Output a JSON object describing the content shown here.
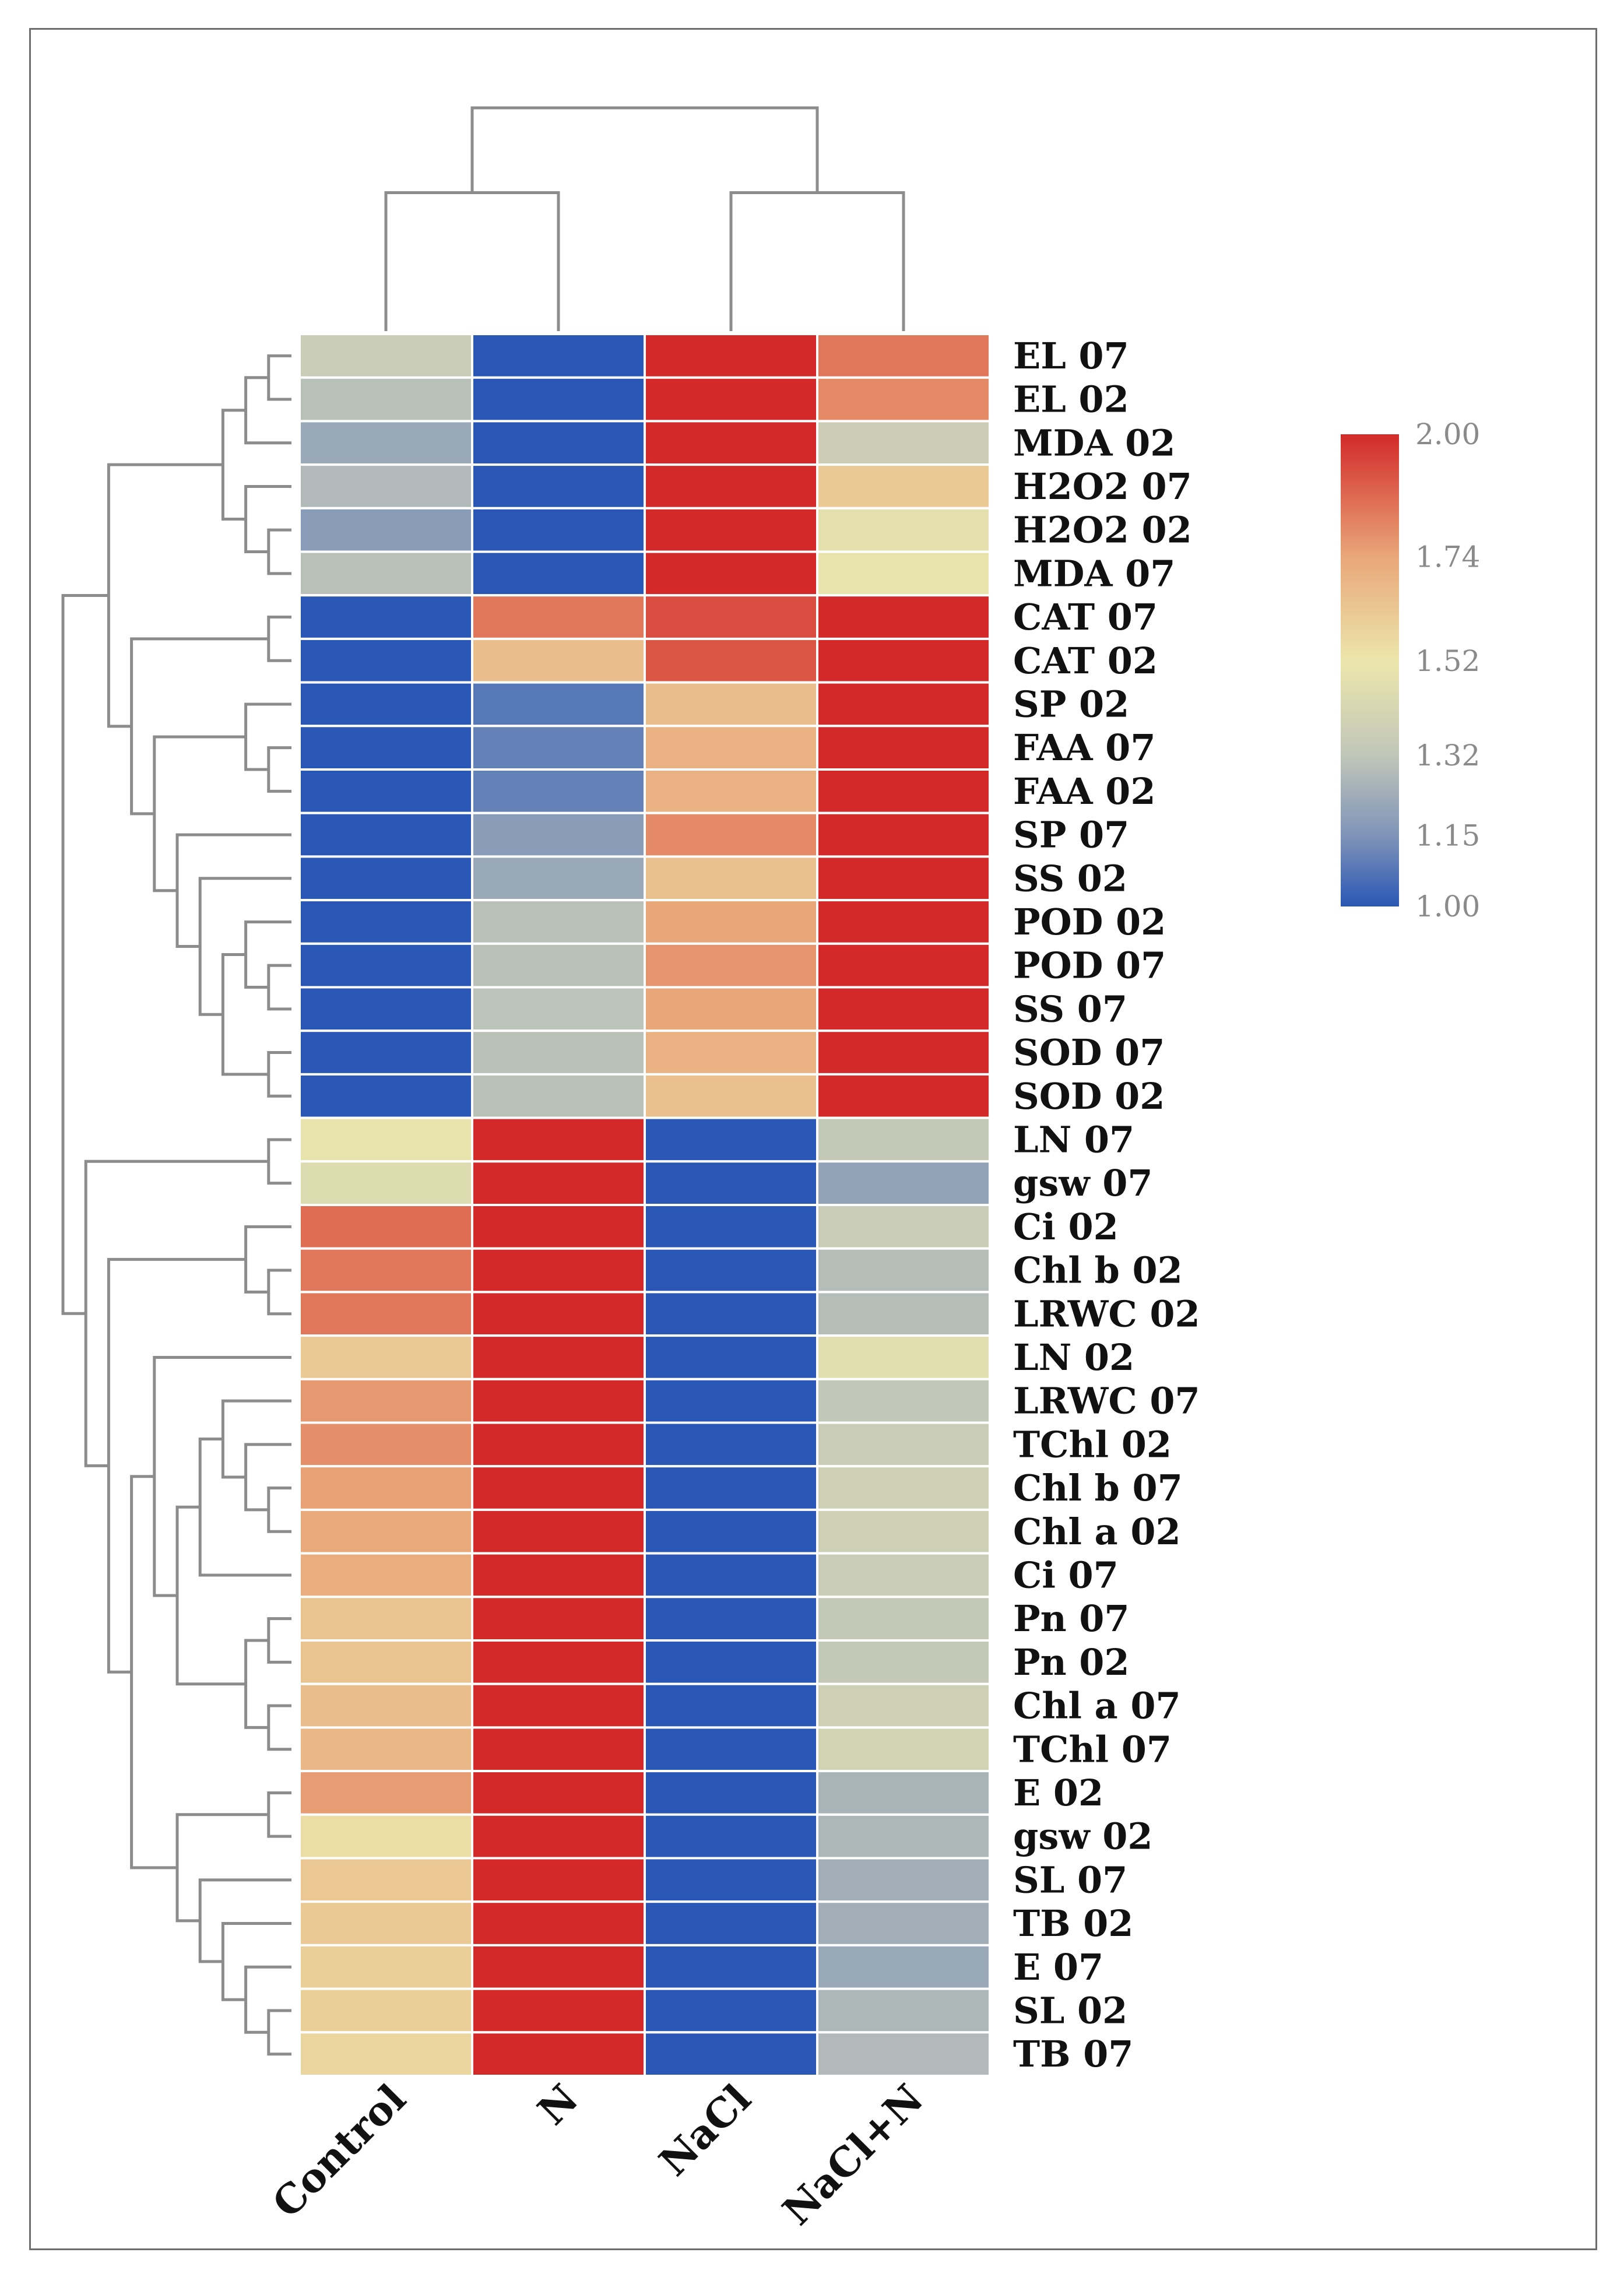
{
  "chart_data": {
    "type": "heatmap",
    "title": "",
    "columns": [
      "Control",
      "N",
      "NaCl",
      "NaCl+N"
    ],
    "rows": [
      "EL 07",
      "EL 02",
      "MDA 02",
      "H2O2 07",
      "H2O2 02",
      "MDA 07",
      "CAT 07",
      "CAT 02",
      "SP 02",
      "FAA 07",
      "FAA 02",
      "SP 07",
      "SS 02",
      "POD 02",
      "POD 07",
      "SS 07",
      "SOD 07",
      "SOD 02",
      "LN 07",
      "gsw 07",
      "Ci 02",
      "Chl b 02",
      "LRWC 02",
      "LN 02",
      "LRWC 07",
      "TChl 02",
      "Chl b 07",
      "Chl a 02",
      "Ci 07",
      "Pn 07",
      "Pn 02",
      "Chl a 07",
      "TChl 07",
      "E 02",
      "gsw 02",
      "SL 07",
      "TB 02",
      "E 07",
      "SL 02",
      "TB 07"
    ],
    "values": [
      [
        1.36,
        1.0,
        2.0,
        1.84
      ],
      [
        1.3,
        1.0,
        2.0,
        1.8
      ],
      [
        1.22,
        1.0,
        2.0,
        1.37
      ],
      [
        1.28,
        1.0,
        2.0,
        1.62
      ],
      [
        1.18,
        1.0,
        2.0,
        1.48
      ],
      [
        1.3,
        1.0,
        2.0,
        1.5
      ],
      [
        1.0,
        1.84,
        1.93,
        2.0
      ],
      [
        1.0,
        1.66,
        1.91,
        2.0
      ],
      [
        1.0,
        1.08,
        1.66,
        2.0
      ],
      [
        1.0,
        1.1,
        1.7,
        2.0
      ],
      [
        1.0,
        1.1,
        1.7,
        2.0
      ],
      [
        1.0,
        1.18,
        1.8,
        2.0
      ],
      [
        1.0,
        1.22,
        1.65,
        2.0
      ],
      [
        1.0,
        1.3,
        1.74,
        2.0
      ],
      [
        1.0,
        1.3,
        1.78,
        2.0
      ],
      [
        1.0,
        1.31,
        1.74,
        2.0
      ],
      [
        1.0,
        1.3,
        1.7,
        2.0
      ],
      [
        1.0,
        1.3,
        1.65,
        2.0
      ],
      [
        1.5,
        2.0,
        1.0,
        1.34
      ],
      [
        1.45,
        2.0,
        1.0,
        1.2
      ],
      [
        1.86,
        2.0,
        1.0,
        1.36
      ],
      [
        1.84,
        2.0,
        1.0,
        1.29
      ],
      [
        1.84,
        2.0,
        1.0,
        1.29
      ],
      [
        1.62,
        2.0,
        1.0,
        1.47
      ],
      [
        1.77,
        2.0,
        1.0,
        1.33
      ],
      [
        1.79,
        2.0,
        1.0,
        1.36
      ],
      [
        1.75,
        2.0,
        1.0,
        1.38
      ],
      [
        1.73,
        2.0,
        1.0,
        1.38
      ],
      [
        1.72,
        2.0,
        1.0,
        1.36
      ],
      [
        1.64,
        2.0,
        1.0,
        1.34
      ],
      [
        1.64,
        2.0,
        1.0,
        1.34
      ],
      [
        1.66,
        2.0,
        1.0,
        1.38
      ],
      [
        1.68,
        2.0,
        1.0,
        1.4
      ],
      [
        1.76,
        2.0,
        1.0,
        1.26
      ],
      [
        1.55,
        2.0,
        1.0,
        1.27
      ],
      [
        1.63,
        2.0,
        1.0,
        1.24
      ],
      [
        1.62,
        2.0,
        1.0,
        1.24
      ],
      [
        1.6,
        2.0,
        1.0,
        1.22
      ],
      [
        1.6,
        2.0,
        1.0,
        1.27
      ],
      [
        1.58,
        2.0,
        1.0,
        1.28
      ]
    ],
    "color_scale": {
      "min": 1.0,
      "max": 2.0,
      "stops": [
        {
          "value": 1.0,
          "color": "#2a57b5"
        },
        {
          "value": 1.15,
          "color": "#7f94b8"
        },
        {
          "value": 1.32,
          "color": "#c0c6b8"
        },
        {
          "value": 1.52,
          "color": "#ece6ac"
        },
        {
          "value": 1.74,
          "color": "#e9a779"
        },
        {
          "value": 2.0,
          "color": "#d32a29"
        }
      ],
      "tick_labels": [
        "2.00",
        "1.74",
        "1.52",
        "1.32",
        "1.15",
        "1.00"
      ]
    },
    "column_dendrogram": {
      "merges": [
        {
          "a": [
            "Control"
          ],
          "b": [
            "N"
          ],
          "height": 0.62
        },
        {
          "a": [
            "NaCl"
          ],
          "b": [
            "NaCl+N"
          ],
          "height": 0.62
        },
        {
          "a": [
            "Control",
            "N"
          ],
          "b": [
            "NaCl",
            "NaCl+N"
          ],
          "height": 1.0
        }
      ]
    },
    "row_dendrogram": {
      "tree": [
        [
          [
            [
              [
                "EL 07",
                "EL 02"
              ],
              "MDA 02"
            ],
            [
              "H2O2 07",
              [
                "H2O2 02",
                "MDA 07"
              ]
            ]
          ],
          [
            [
              "CAT 07",
              "CAT 02"
            ],
            [
              [
                "SP 02",
                [
                  "FAA 07",
                  "FAA 02"
                ]
              ],
              [
                "SP 07",
                [
                  "SS 02",
                  [
                    [
                      "POD 02",
                      [
                        "POD 07",
                        "SS 07"
                      ]
                    ],
                    [
                      "SOD 07",
                      "SOD 02"
                    ]
                  ]
                ]
              ]
            ]
          ]
        ],
        [
          [
            "LN 07",
            "gsw 07"
          ],
          [
            [
              "Ci 02",
              [
                "Chl b 02",
                "LRWC 02"
              ]
            ],
            [
              [
                "LN 02",
                [
                  [
                    [
                      "LRWC 07",
                      [
                        "TChl 02",
                        [
                          "Chl b 07",
                          "Chl a 02"
                        ]
                      ]
                    ],
                    "Ci 07"
                  ],
                  [
                    [
                      "Pn 07",
                      "Pn 02"
                    ],
                    [
                      "Chl a 07",
                      "TChl 07"
                    ]
                  ]
                ]
              ],
              [
                [
                  "E 02",
                  "gsw 02"
                ],
                [
                  "SL 07",
                  [
                    "TB 02",
                    [
                      "E 07",
                      [
                        "SL 02",
                        "TB 07"
                      ]
                    ]
                  ]
                ]
              ]
            ]
          ]
        ]
      ]
    }
  }
}
